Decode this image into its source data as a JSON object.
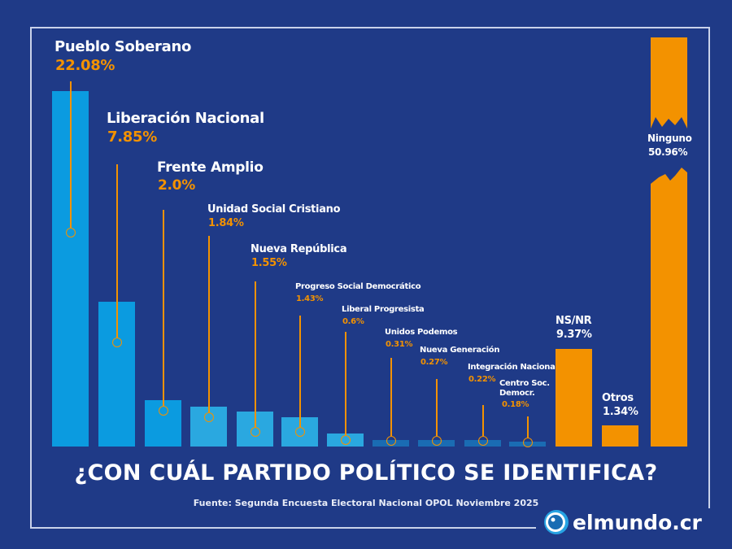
{
  "chart_data": {
    "type": "bar",
    "title": "¿CON CUÁL PARTIDO POLÍTICO SE IDENTIFICA?",
    "categories": [
      "Pueblo Soberano",
      "Liberación Nacional",
      "Frente Amplio",
      "Unidad Social Cristiano",
      "Nueva República",
      "Progreso Social Democrático",
      "Liberal Progresista",
      "Unidos Podemos",
      "Nueva Generación",
      "Integración Nacional",
      "Centro Soc. Democr.",
      "NS/NR",
      "Otros",
      "Ninguno"
    ],
    "values": [
      22.08,
      7.85,
      2.0,
      1.84,
      1.55,
      1.43,
      0.6,
      0.31,
      0.27,
      0.22,
      0.18,
      9.37,
      1.34,
      50.96
    ],
    "labels": [
      "22.08%",
      "7.85%",
      "2.0%",
      "1.84%",
      "1.55%",
      "1.43%",
      "0.6%",
      "0.31%",
      "0.27%",
      "0.22%",
      "0.18%",
      "9.37%",
      "1.34%",
      "50.96%"
    ],
    "axis_break": "Ninguno",
    "colors": {
      "major": "#0b9be0",
      "minor": "#2aa8e0",
      "small": "#1a6cb3",
      "other": "#f39200"
    }
  },
  "source": "Fuente: Segunda Encuesta Electoral Nacional OPOL Noviembre 2025",
  "logo": "elmundo.cr"
}
